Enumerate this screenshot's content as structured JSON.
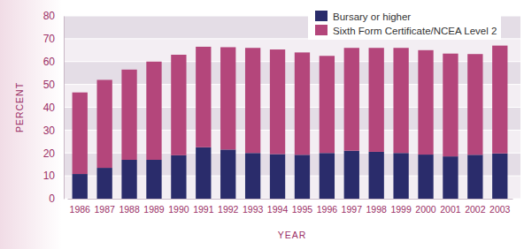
{
  "chart_data": {
    "type": "bar",
    "stacked": true,
    "x_label": "YEAR",
    "y_label": "PERCENT",
    "categories": [
      "1986",
      "1987",
      "1988",
      "1989",
      "1990",
      "1991",
      "1992",
      "1993",
      "1994",
      "1995",
      "1996",
      "1997",
      "1998",
      "1999",
      "2000",
      "2001",
      "2002",
      "2003"
    ],
    "series": [
      {
        "name": "Bursary or higher",
        "color": "#2a2c6b",
        "values": [
          10.8,
          13.5,
          17,
          17,
          19,
          22.5,
          21.5,
          20,
          19.5,
          19.2,
          20,
          21,
          20.5,
          20,
          19.3,
          18.5,
          19.2,
          19.8
        ]
      },
      {
        "name": "Sixth Form Certificate/NCEA Level 2",
        "color": "#b4467b",
        "values": [
          35.7,
          38.5,
          39.5,
          43,
          44,
          44,
          44.8,
          46,
          45.8,
          44.8,
          42.5,
          45,
          45.5,
          46,
          45.7,
          45,
          44.1,
          47.2
        ]
      }
    ],
    "ylim": [
      0,
      80
    ],
    "yticks": [
      0,
      10,
      20,
      30,
      40,
      50,
      60,
      70,
      80
    ],
    "grid": true,
    "legend": "top-right"
  }
}
